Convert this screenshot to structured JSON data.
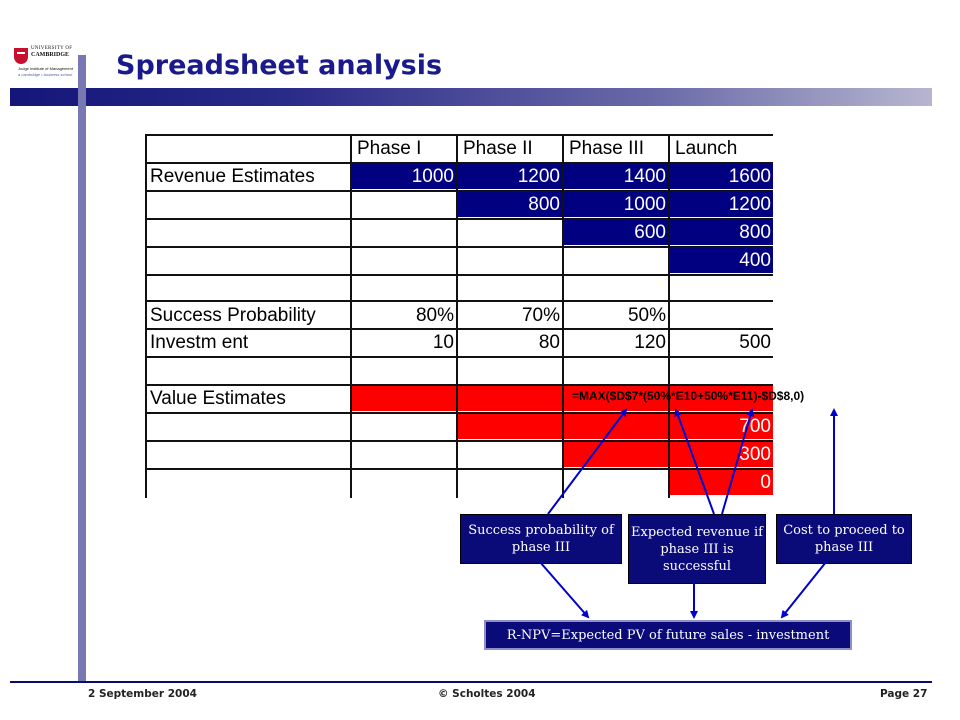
{
  "slide": {
    "title": "Spreadsheet analysis",
    "accent_color": "#1a1a8c"
  },
  "logo": {
    "line1": "UNIVERSITY OF",
    "line2": "CAMBRIDGE",
    "line3": "Judge Institute of Management",
    "line4": "a cambridge • business school"
  },
  "table": {
    "headers": [
      "Phase I",
      "Phase II",
      "Phase III",
      "Launch"
    ],
    "rows": {
      "revenue": {
        "label": "Revenue Estimates",
        "values": [
          "1000",
          "1200",
          "1400",
          "1600"
        ]
      },
      "rev2": {
        "values": [
          "800",
          "1000",
          "1200"
        ]
      },
      "rev3": {
        "values": [
          "600",
          "800"
        ]
      },
      "rev4": {
        "values": [
          "400"
        ]
      },
      "success": {
        "label": "Success Probability",
        "values": [
          "80%",
          "70%",
          "50%"
        ]
      },
      "investment": {
        "label": "Investm ent",
        "values": [
          "10",
          "80",
          "120",
          "500"
        ]
      },
      "value": {
        "label": "Value Estimates"
      },
      "val2": {
        "values": [
          "700"
        ]
      },
      "val3": {
        "values": [
          "300"
        ]
      },
      "val4": {
        "values": [
          "0"
        ]
      }
    },
    "formula": "=MAX($D$7*(50%*E10+50%*E11)-$D$8,0)",
    "colors": {
      "navy": "#000080",
      "red": "#ff0000"
    }
  },
  "callouts": {
    "success_prob": "Success probability of phase III",
    "expected_revenue": "Expected revenue if phase III is successful",
    "cost_to_proceed": "Cost to proceed to phase III",
    "rnpv": "R-NPV=Expected PV of future sales - investment"
  },
  "footer": {
    "date": "2 September 2004",
    "copyright": "© Scholtes 2004",
    "page": "Page 27"
  }
}
